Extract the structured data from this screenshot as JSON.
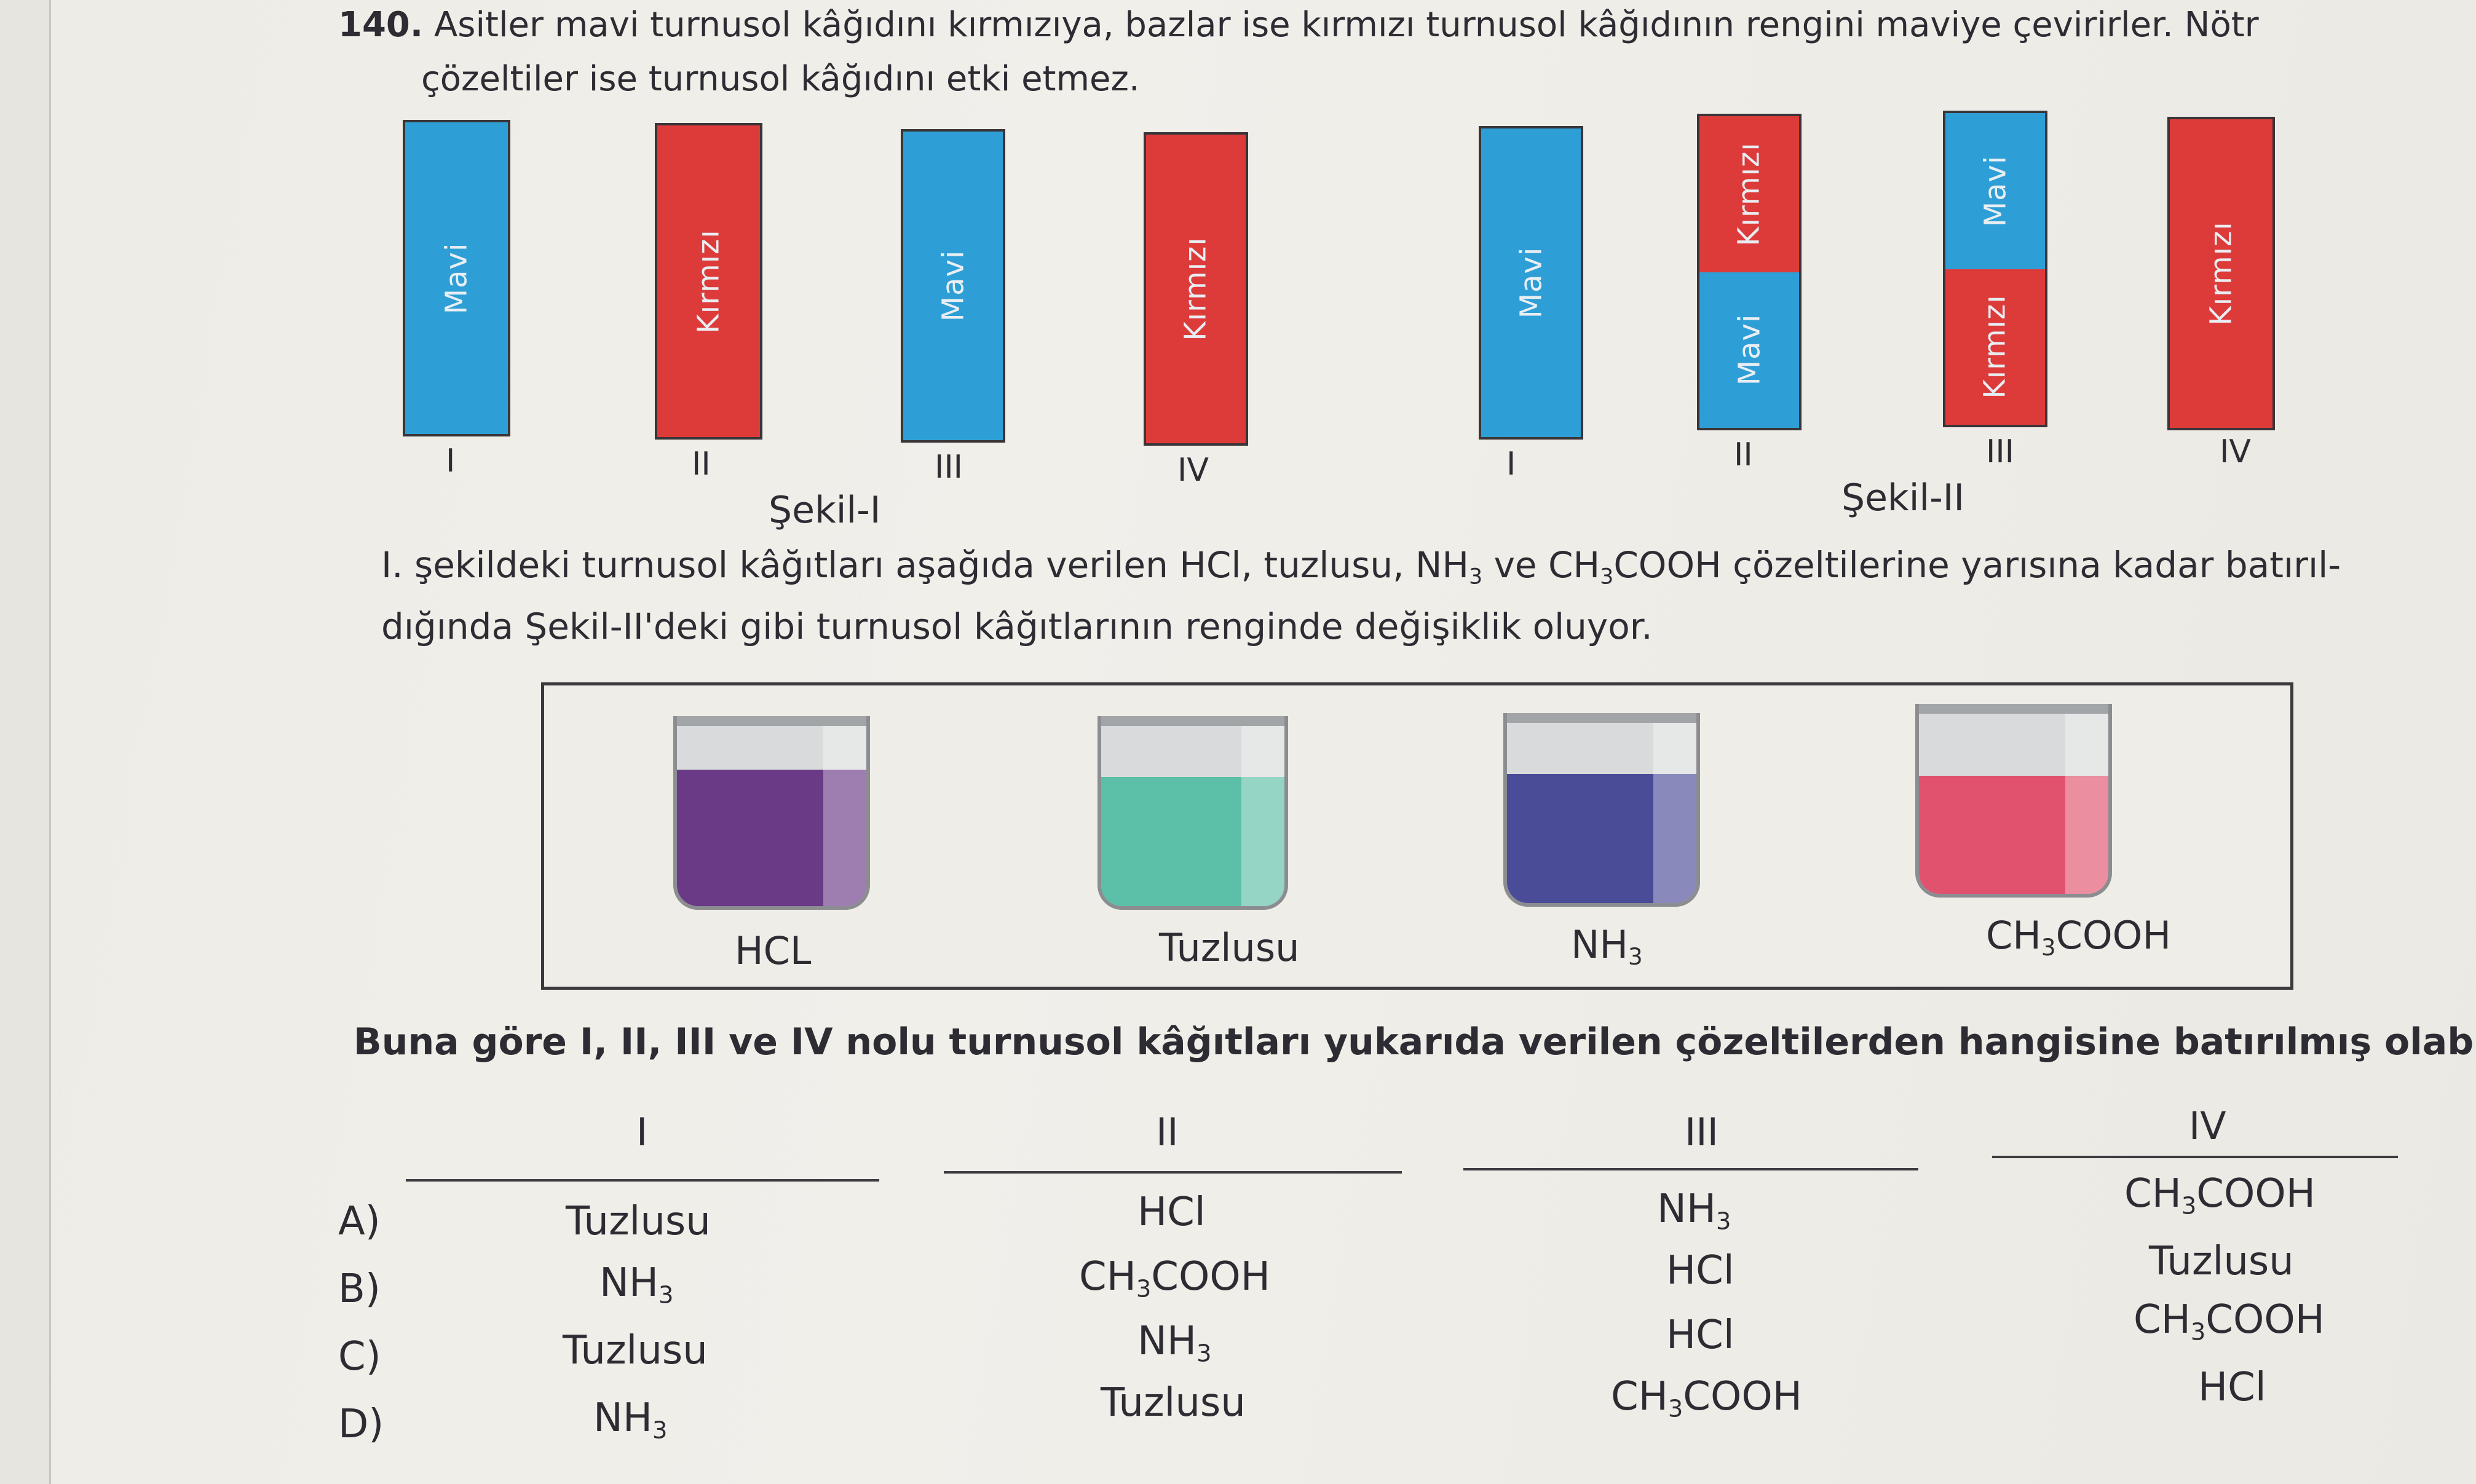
{
  "question": {
    "number": "140.",
    "line1": "Asitler mavi turnusol kâğıdını kırmızıya, bazlar ise kırmızı turnusol kâğıdının rengini maviye çevirirler. Nötr",
    "line2": "çözeltiler ise turnusol kâğıdını etki etmez."
  },
  "colors": {
    "blue": "#2e9fd6",
    "red": "#dd3b3a"
  },
  "figure1": {
    "title": "Şekil-I",
    "strips": [
      {
        "roman": "I",
        "segments": [
          {
            "color": "blue",
            "label": "Mavi"
          }
        ]
      },
      {
        "roman": "II",
        "segments": [
          {
            "color": "red",
            "label": "Kırmızı"
          }
        ]
      },
      {
        "roman": "III",
        "segments": [
          {
            "color": "blue",
            "label": "Mavi"
          }
        ]
      },
      {
        "roman": "IV",
        "segments": [
          {
            "color": "red",
            "label": "Kırmızı"
          }
        ]
      }
    ]
  },
  "figure2": {
    "title": "Şekil-II",
    "strips": [
      {
        "roman": "I",
        "segments": [
          {
            "color": "blue",
            "label": "Mavi"
          }
        ]
      },
      {
        "roman": "II",
        "segments": [
          {
            "color": "red",
            "label": "Kırmızı"
          },
          {
            "color": "blue",
            "label": "Mavi"
          }
        ]
      },
      {
        "roman": "III",
        "segments": [
          {
            "color": "blue",
            "label": "Mavi"
          },
          {
            "color": "red",
            "label": "Kırmızı"
          }
        ]
      },
      {
        "roman": "IV",
        "segments": [
          {
            "color": "red",
            "label": "Kırmızı"
          }
        ]
      }
    ]
  },
  "explanation": {
    "line1_a": "I. şekildeki turnusol kâğıtları aşağıda verilen HCl, tuzlusu, NH",
    "line1_sub": "3",
    "line1_b": " ve CH",
    "line1_sub2": "3",
    "line1_c": "COOH çözeltilerine yarısına kadar batırıl-",
    "line2": "dığında Şekil-II'deki gibi turnusol kâğıtlarının renginde değişiklik oluyor."
  },
  "beakers": [
    {
      "label": "HCL",
      "label_sub": "",
      "label_tail": "",
      "liquid_color": "#6a3a86"
    },
    {
      "label": "Tuzlusu",
      "label_sub": "",
      "label_tail": "",
      "liquid_color": "#5cbfa7"
    },
    {
      "label": "NH",
      "label_sub": "3",
      "label_tail": "",
      "liquid_color": "#4a4c97"
    },
    {
      "label": "CH",
      "label_sub": "3",
      "label_tail": "COOH",
      "liquid_color": "#e0526e"
    }
  ],
  "prompt": "Buna göre I, II, III ve IV nolu turnusol kâğıtları yukarıda verilen çözeltilerden hangisine batırılmış olabilir?",
  "columns": [
    "I",
    "II",
    "III",
    "IV"
  ],
  "options": [
    {
      "letter": "A)",
      "answers": [
        {
          "base": "Tuzlusu",
          "sub": "",
          "tail": ""
        },
        {
          "base": "HCl",
          "sub": "",
          "tail": ""
        },
        {
          "base": "NH",
          "sub": "3",
          "tail": ""
        },
        {
          "base": "CH",
          "sub": "3",
          "tail": "COOH"
        }
      ]
    },
    {
      "letter": "B)",
      "answers": [
        {
          "base": "NH",
          "sub": "3",
          "tail": ""
        },
        {
          "base": "CH",
          "sub": "3",
          "tail": "COOH"
        },
        {
          "base": "HCl",
          "sub": "",
          "tail": ""
        },
        {
          "base": "Tuzlusu",
          "sub": "",
          "tail": ""
        }
      ]
    },
    {
      "letter": "C)",
      "answers": [
        {
          "base": "Tuzlusu",
          "sub": "",
          "tail": ""
        },
        {
          "base": "NH",
          "sub": "3",
          "tail": ""
        },
        {
          "base": "HCl",
          "sub": "",
          "tail": ""
        },
        {
          "base": "CH",
          "sub": "3",
          "tail": "COOH"
        }
      ]
    },
    {
      "letter": "D)",
      "answers": [
        {
          "base": "NH",
          "sub": "3",
          "tail": ""
        },
        {
          "base": "Tuzlusu",
          "sub": "",
          "tail": ""
        },
        {
          "base": "CH",
          "sub": "3",
          "tail": "COOH"
        },
        {
          "base": "HCl",
          "sub": "",
          "tail": ""
        }
      ]
    }
  ]
}
